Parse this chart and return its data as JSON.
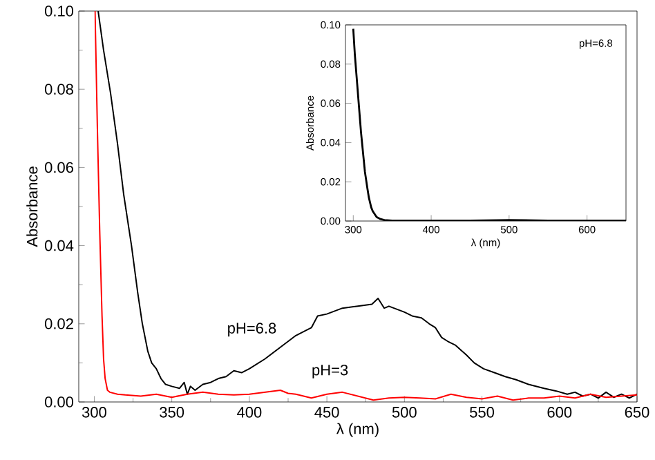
{
  "chart_data": [
    {
      "type": "line",
      "xlabel": "λ  (nm)",
      "ylabel": "Absorbance",
      "xlim": [
        290,
        650
      ],
      "ylim": [
        0,
        0.1
      ],
      "xticks": [
        300,
        350,
        400,
        450,
        500,
        550,
        600,
        650
      ],
      "yticks": [
        {
          "value": 0,
          "label": "0.00"
        },
        {
          "value": 0.02,
          "label": "0.02"
        },
        {
          "value": 0.04,
          "label": "0.04"
        },
        {
          "value": 0.06,
          "label": "0.06"
        },
        {
          "value": 0.08,
          "label": "0.08"
        },
        {
          "value": 0.1,
          "label": "0.10"
        }
      ],
      "series": [
        {
          "name": "pH=6.8",
          "color": "#000000",
          "x": [
            302.5,
            306,
            310.5,
            315,
            319,
            324,
            328,
            331,
            334.5,
            337,
            340,
            343,
            346,
            350,
            355,
            358,
            360,
            362,
            365,
            370,
            375,
            380,
            385,
            390,
            395,
            400,
            410,
            420,
            430,
            440,
            444,
            450,
            460,
            470,
            479,
            483,
            487,
            490,
            500,
            505,
            511,
            516,
            520,
            524,
            528,
            533,
            540,
            545,
            551,
            558,
            565,
            572,
            580,
            585,
            590,
            598,
            605,
            610,
            615,
            620,
            625,
            630,
            635,
            640,
            645,
            650
          ],
          "values": [
            0.1,
            0.09,
            0.079,
            0.066,
            0.053,
            0.04,
            0.028,
            0.02,
            0.013,
            0.01,
            0.0085,
            0.006,
            0.0045,
            0.004,
            0.0035,
            0.005,
            0.002,
            0.004,
            0.003,
            0.0045,
            0.005,
            0.006,
            0.0065,
            0.008,
            0.0075,
            0.0085,
            0.011,
            0.014,
            0.017,
            0.019,
            0.022,
            0.0225,
            0.024,
            0.0245,
            0.025,
            0.0265,
            0.024,
            0.0245,
            0.023,
            0.022,
            0.0215,
            0.02,
            0.019,
            0.0165,
            0.0155,
            0.0145,
            0.012,
            0.01,
            0.0085,
            0.0075,
            0.0065,
            0.0057,
            0.0045,
            0.004,
            0.0035,
            0.0028,
            0.002,
            0.0025,
            0.0015,
            0.002,
            0.001,
            0.0025,
            0.0012,
            0.002,
            0.001,
            0.002
          ]
        },
        {
          "name": "pH=3",
          "color": "#ff0000",
          "x": [
            300.5,
            302,
            303.5,
            305,
            306,
            307,
            308.5,
            310,
            315,
            320,
            330,
            340,
            350,
            360,
            370,
            380,
            390,
            400,
            410,
            420,
            425,
            430,
            440,
            450,
            460,
            470,
            480,
            490,
            500,
            510,
            520,
            530,
            540,
            550,
            560,
            570,
            580,
            590,
            600,
            610,
            620,
            630,
            640,
            650
          ],
          "values": [
            0.1,
            0.07,
            0.044,
            0.022,
            0.011,
            0.006,
            0.003,
            0.0025,
            0.002,
            0.0018,
            0.0015,
            0.002,
            0.0012,
            0.002,
            0.0025,
            0.002,
            0.0018,
            0.002,
            0.0025,
            0.003,
            0.0022,
            0.002,
            0.001,
            0.002,
            0.0025,
            0.0015,
            0.0005,
            0.001,
            0.0012,
            0.001,
            0.0008,
            0.002,
            0.0012,
            0.0008,
            0.0015,
            0.0005,
            0.001,
            0.001,
            0.0015,
            0.001,
            0.002,
            0.0012,
            0.0015,
            0.0018
          ]
        }
      ],
      "legend": false
    },
    {
      "type": "line",
      "xlabel": "λ  (nm)",
      "ylabel": "Absorbance",
      "xlim": [
        290,
        650
      ],
      "ylim": [
        0,
        0.1
      ],
      "xticks": [
        300,
        400,
        500,
        600
      ],
      "yticks": [
        {
          "value": 0,
          "label": "0.00"
        },
        {
          "value": 0.02,
          "label": "0.02"
        },
        {
          "value": 0.04,
          "label": "0.04"
        },
        {
          "value": 0.06,
          "label": "0.06"
        },
        {
          "value": 0.08,
          "label": "0.08"
        },
        {
          "value": 0.1,
          "label": "0.10"
        }
      ],
      "series": [
        {
          "color": "#000000",
          "x": [
            300,
            302,
            305,
            308,
            310,
            313,
            315,
            318,
            320,
            323,
            325,
            330,
            335,
            340,
            350,
            400,
            450,
            500,
            550,
            600,
            650
          ],
          "values": [
            0.098,
            0.085,
            0.07,
            0.055,
            0.045,
            0.033,
            0.025,
            0.017,
            0.012,
            0.007,
            0.005,
            0.002,
            0.001,
            0.0005,
            0.0002,
            0.0002,
            0.0002,
            0.0005,
            0.0002,
            0.0002,
            0.0002
          ]
        }
      ],
      "annotations": [
        "pH=6.8"
      ]
    }
  ]
}
